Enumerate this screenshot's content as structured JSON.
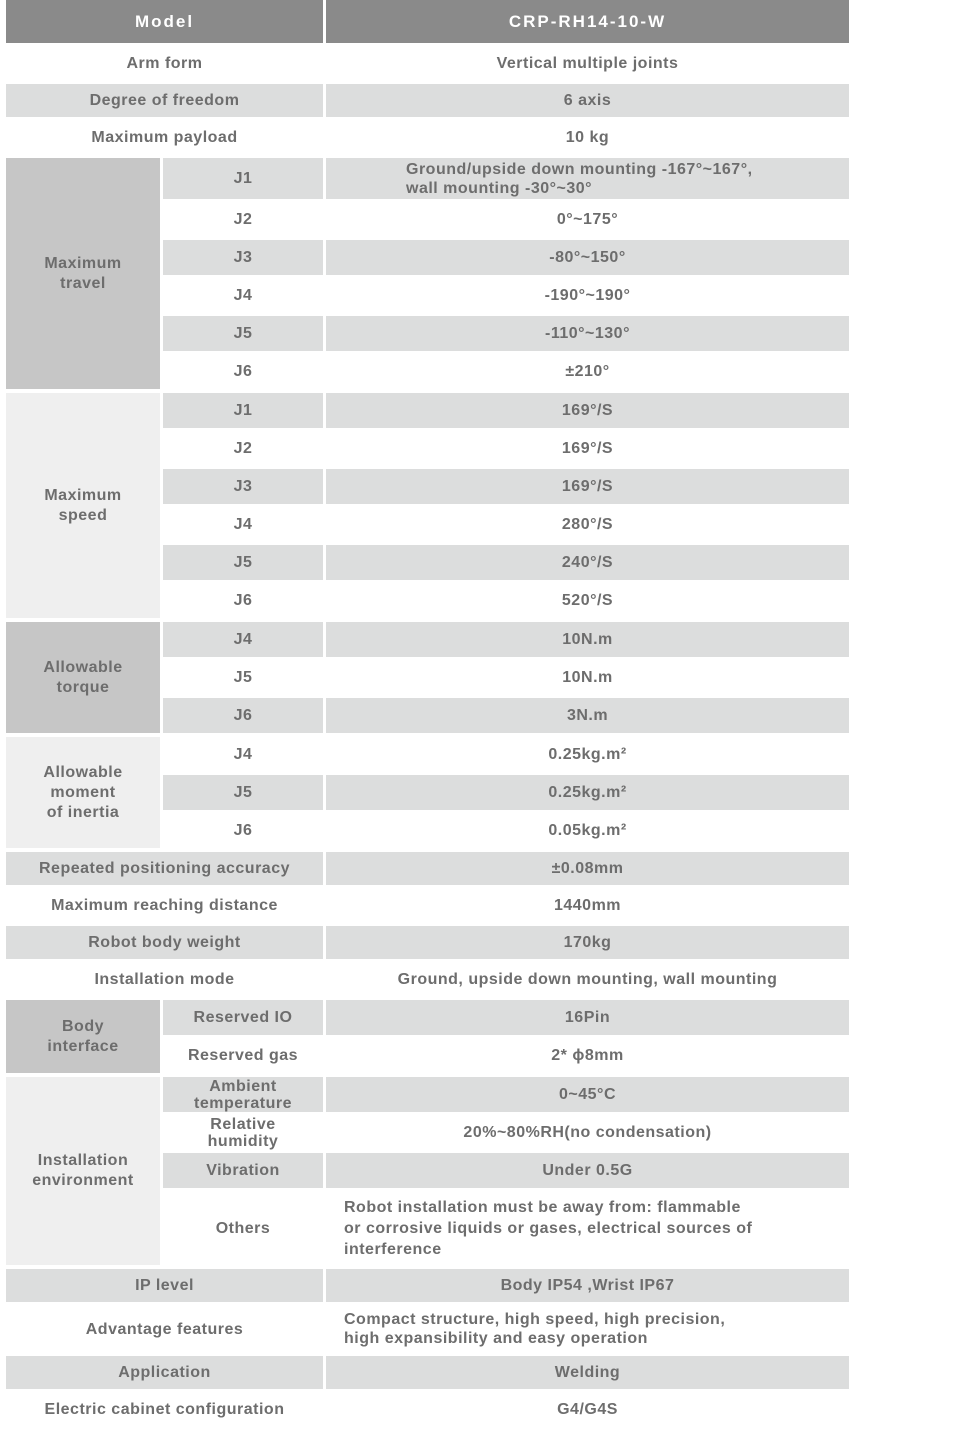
{
  "colors": {
    "header_bg": "#8a8a8a",
    "header_text": "#ffffff",
    "stripe_gray": "#dcdddd",
    "span_medium_gray": "#c6c6c6",
    "span_light_gray": "#efefef",
    "body_text": "#6d6d6d"
  },
  "header": {
    "label": "Model",
    "value": "CRP-RH14-10-W"
  },
  "top_rows": [
    {
      "label": "Arm form",
      "value": "Vertical multiple joints"
    },
    {
      "label": "Degree of freedom",
      "value": "6 axis"
    },
    {
      "label": "Maximum payload",
      "value": "10 kg"
    }
  ],
  "sections": {
    "travel": {
      "label": "Maximum\ntravel",
      "items": [
        {
          "sub": "J1",
          "value": "Ground/upside down mounting -167°~167°,\nwall mounting -30°~30°"
        },
        {
          "sub": "J2",
          "value": "0°~175°"
        },
        {
          "sub": "J3",
          "value": "-80°~150°"
        },
        {
          "sub": "J4",
          "value": "-190°~190°"
        },
        {
          "sub": "J5",
          "value": "-110°~130°"
        },
        {
          "sub": "J6",
          "value": "±210°"
        }
      ]
    },
    "speed": {
      "label": "Maximum\nspeed",
      "items": [
        {
          "sub": "J1",
          "value": "169°/S"
        },
        {
          "sub": "J2",
          "value": "169°/S"
        },
        {
          "sub": "J3",
          "value": "169°/S"
        },
        {
          "sub": "J4",
          "value": "280°/S"
        },
        {
          "sub": "J5",
          "value": "240°/S"
        },
        {
          "sub": "J6",
          "value": "520°/S"
        }
      ]
    },
    "torque": {
      "label": "Allowable\ntorque",
      "items": [
        {
          "sub": "J4",
          "value": "10N.m"
        },
        {
          "sub": "J5",
          "value": "10N.m"
        },
        {
          "sub": "J6",
          "value": "3N.m"
        }
      ]
    },
    "inertia": {
      "label": "Allowable\nmoment\nof inertia",
      "items": [
        {
          "sub": "J4",
          "value": "0.25kg.m²"
        },
        {
          "sub": "J5",
          "value": "0.25kg.m²"
        },
        {
          "sub": "J6",
          "value": "0.05kg.m²"
        }
      ]
    },
    "body_interface": {
      "label": "Body\ninterface",
      "items": [
        {
          "sub": "Reserved IO",
          "value": "16Pin"
        },
        {
          "sub": "Reserved gas",
          "value": "2* ϕ8mm"
        }
      ]
    },
    "environment": {
      "label": "Installation\nenvironment",
      "items": [
        {
          "sub": "Ambient\ntemperature",
          "value": "0~45°C"
        },
        {
          "sub": "Relative\nhumidity",
          "value": "20%~80%RH(no condensation)"
        },
        {
          "sub": "Vibration",
          "value": "Under 0.5G"
        },
        {
          "sub": "Others",
          "value": "Robot installation must be away from: flammable\nor corrosive liquids or gases, electrical sources of\ninterference"
        }
      ]
    }
  },
  "mid_rows": [
    {
      "label": "Repeated positioning accuracy",
      "value": "±0.08mm"
    },
    {
      "label": "Maximum reaching distance",
      "value": "1440mm"
    },
    {
      "label": "Robot body weight",
      "value": "170kg"
    },
    {
      "label": "Installation mode",
      "value": "Ground, upside down mounting, wall mounting"
    }
  ],
  "bottom_rows": [
    {
      "label": "IP level",
      "value": "Body IP54 ,Wrist IP67"
    },
    {
      "label": "Advantage features",
      "value": "Compact structure, high speed, high precision,\nhigh expansibility and easy operation"
    },
    {
      "label": "Application",
      "value": "Welding"
    },
    {
      "label": "Electric cabinet configuration",
      "value": "G4/G4S"
    }
  ]
}
